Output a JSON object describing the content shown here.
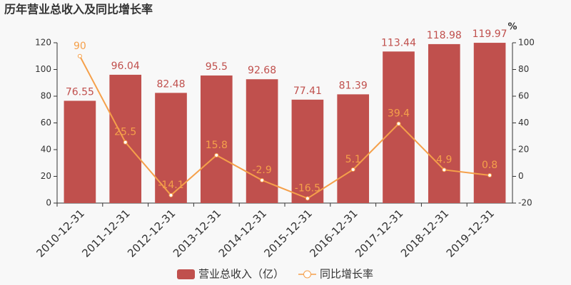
{
  "chart_data": {
    "type": "bar",
    "title": "历年营业总收入及同比增长率",
    "categories": [
      "2010-12-31",
      "2011-12-31",
      "2012-12-31",
      "2013-12-31",
      "2014-12-31",
      "2015-12-31",
      "2016-12-31",
      "2017-12-31",
      "2018-12-31",
      "2019-12-31"
    ],
    "series": [
      {
        "name": "营业总收入（亿）",
        "type": "bar",
        "color": "#c0504d",
        "values": [
          76.55,
          96.04,
          82.48,
          95.5,
          92.68,
          77.41,
          81.39,
          113.44,
          118.98,
          119.97
        ]
      },
      {
        "name": "同比增长率",
        "type": "line",
        "axis": "y2",
        "color": "#f5a04a",
        "values": [
          90,
          25.5,
          -14.1,
          15.8,
          -2.9,
          -16.5,
          5.1,
          39.4,
          4.9,
          0.8
        ]
      }
    ],
    "ylim": [
      0,
      120
    ],
    "yticks": [
      0,
      20,
      40,
      60,
      80,
      100,
      120
    ],
    "y2lim": [
      -20,
      100
    ],
    "y2ticks": [
      -20,
      0,
      20,
      40,
      60,
      80,
      100
    ],
    "y2_label": "%",
    "legend": "bottom"
  }
}
